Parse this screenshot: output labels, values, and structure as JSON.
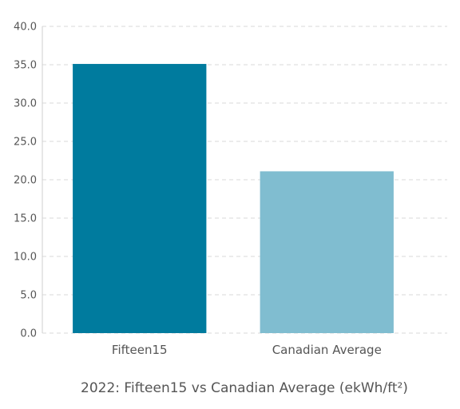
{
  "chart_data": {
    "type": "bar",
    "title": "2022: Fifteen15 vs Canadian Average (ekWh/ft²)",
    "xlabel": "",
    "ylabel": "",
    "categories": [
      "Fifteen15",
      "Canadian Average"
    ],
    "values": [
      35.1,
      21.1
    ],
    "colors": [
      "#007b9e",
      "#80bdd0"
    ],
    "ylim": [
      0,
      40
    ],
    "yticks": [
      "0.0",
      "5.0",
      "10.0",
      "15.0",
      "20.0",
      "25.0",
      "30.0",
      "35.0",
      "40.0"
    ],
    "grid": true,
    "legend": "none"
  }
}
